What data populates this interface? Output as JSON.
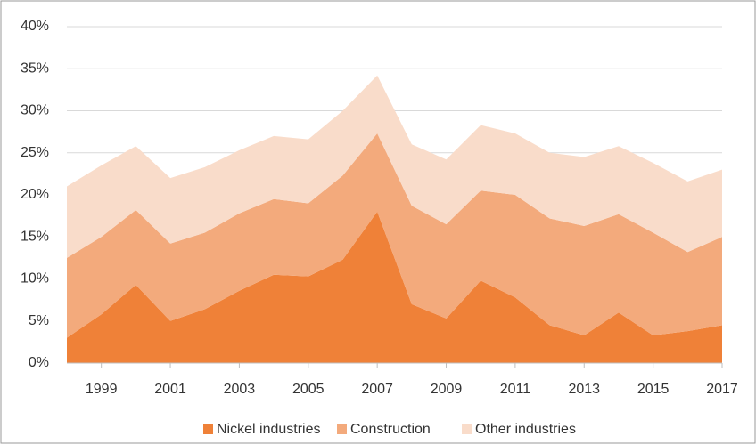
{
  "chart_data": {
    "type": "stacked_area",
    "x": [
      1998,
      1999,
      2000,
      2001,
      2002,
      2003,
      2004,
      2005,
      2006,
      2007,
      2008,
      2009,
      2010,
      2011,
      2012,
      2013,
      2014,
      2015,
      2016,
      2017
    ],
    "xlim": [
      1998,
      2017
    ],
    "xticks": [
      1999,
      2001,
      2003,
      2005,
      2007,
      2009,
      2011,
      2013,
      2015,
      2017
    ],
    "ylim": [
      0,
      40
    ],
    "yticks": [
      {
        "value": 0,
        "label": "0%"
      },
      {
        "value": 5,
        "label": "5%"
      },
      {
        "value": 10,
        "label": "10%"
      },
      {
        "value": 15,
        "label": "15%"
      },
      {
        "value": 20,
        "label": "20%"
      },
      {
        "value": 25,
        "label": "25%"
      },
      {
        "value": 30,
        "label": "30%"
      },
      {
        "value": 35,
        "label": "35%"
      },
      {
        "value": 40,
        "label": "40%"
      }
    ],
    "grid": true,
    "legend": "bottom",
    "series": [
      {
        "name": "Nickel industries",
        "color": "#ef8138",
        "values": [
          3,
          5.8,
          9.3,
          5,
          6.4,
          8.6,
          10.5,
          10.3,
          12.3,
          18,
          7,
          5.3,
          9.8,
          7.8,
          4.5,
          3.3,
          6,
          3.3,
          3.8,
          4.5
        ]
      },
      {
        "name": "Construction",
        "color": "#f3aa7c",
        "values": [
          9.5,
          9.2,
          8.9,
          9.2,
          9.1,
          9.2,
          9,
          8.7,
          10,
          9.3,
          11.7,
          11.2,
          10.7,
          12.2,
          12.7,
          13,
          11.7,
          12.2,
          9.4,
          10.5
        ]
      },
      {
        "name": "Other industries",
        "color": "#f9dcca",
        "values": [
          8.5,
          8.5,
          7.6,
          7.8,
          7.8,
          7.5,
          7.5,
          7.6,
          7.7,
          6.9,
          7.3,
          7.7,
          7.8,
          7.3,
          7.8,
          8.2,
          8.1,
          8.3,
          8.4,
          8
        ]
      }
    ]
  }
}
